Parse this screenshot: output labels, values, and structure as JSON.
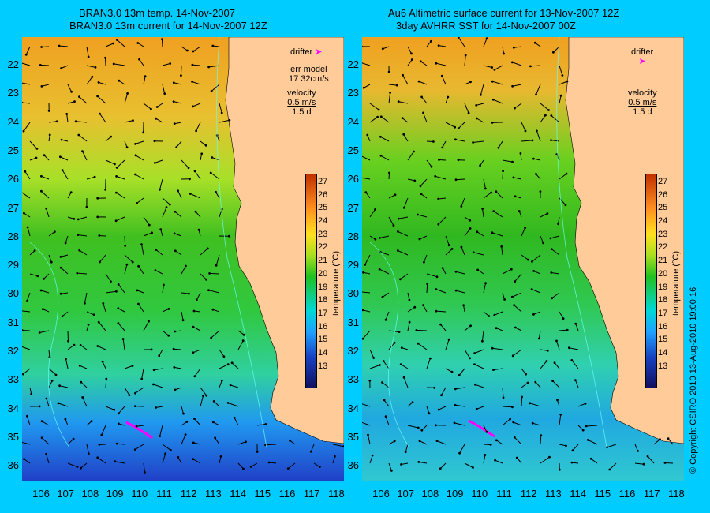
{
  "left_panel": {
    "title_line1": "BRAN3.0 13m temp. 14-Nov-2007",
    "title_line2": "BRAN3.0 13m current for 14-Nov-2007 12Z",
    "drifter_label": "drifter",
    "err_model_label": "err model",
    "err_model_value": "17 32cm/s",
    "velocity_label": "velocity",
    "velocity_scale": "0.5 m/s",
    "velocity_time": "1.5 d"
  },
  "right_panel": {
    "title_line1": "Au6 Altimetric surface current for 13-Nov-2007 12Z",
    "title_line2": "3day AVHRR SST for 14-Nov-2007 00Z",
    "drifter_label": "drifter",
    "velocity_label": "velocity",
    "velocity_scale": "0.5 m/s",
    "velocity_time": "1.5 d"
  },
  "latitude_labels": [
    "22",
    "23",
    "24",
    "25",
    "26",
    "27",
    "28",
    "29",
    "30",
    "31",
    "32",
    "33",
    "34",
    "35",
    "36"
  ],
  "longitude_labels": [
    "106",
    "107",
    "108",
    "109",
    "110",
    "111",
    "112",
    "113",
    "114",
    "115",
    "116",
    "117",
    "118"
  ],
  "colorbar": {
    "label": "temperature (°C)",
    "ticks": [
      "27",
      "26",
      "25",
      "24",
      "23",
      "22",
      "21",
      "20",
      "19",
      "18",
      "17",
      "16",
      "15",
      "14",
      "13"
    ],
    "range": [
      13,
      27.5
    ]
  },
  "copyright": "© Copyright CSIRO 2010  13-Aug-2010 19:00:16",
  "colors": {
    "background": "#00ccff",
    "land": "#ffcc99",
    "drifter": "#ff00ff",
    "contour": "#66ffff"
  }
}
